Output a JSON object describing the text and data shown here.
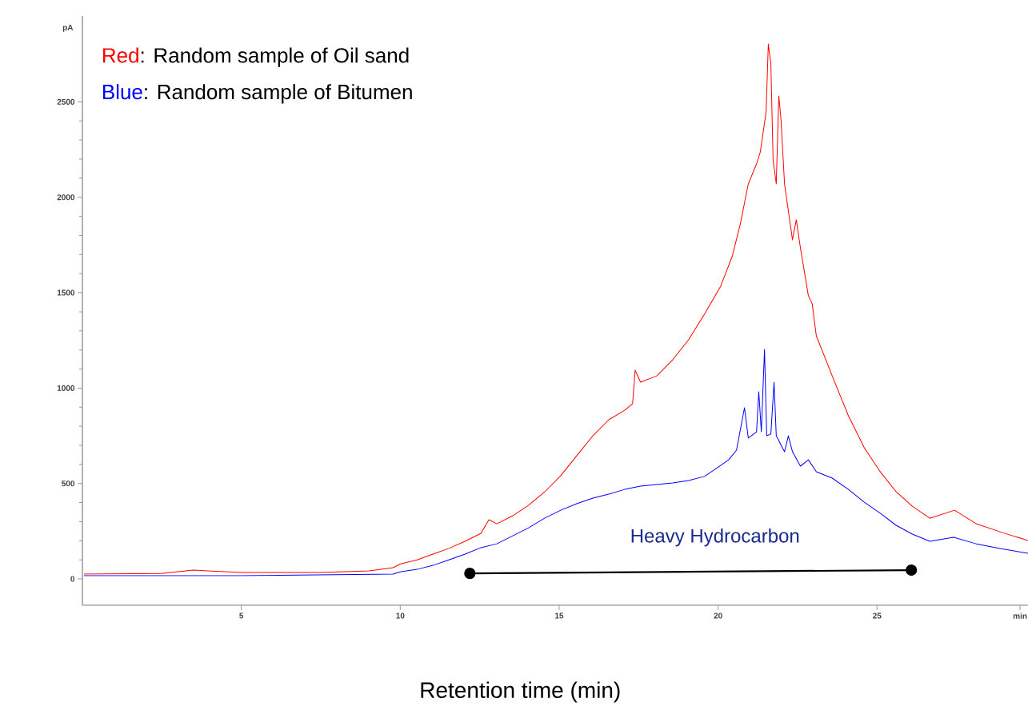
{
  "chart_data": {
    "type": "line",
    "xlabel": "Retention time (min)",
    "ylabel": "pA",
    "xlim": [
      0,
      29.75
    ],
    "ylim": [
      -138,
      2950
    ],
    "xticks": [
      5,
      10,
      15,
      20,
      25,
      {
        "value": 29.5,
        "label": "min"
      }
    ],
    "yticks": [
      0,
      500,
      1000,
      1500,
      2000,
      2500
    ],
    "grid": false,
    "legend": "top left",
    "marker": "none",
    "line_style": "solid",
    "annotations": [
      ": Random sample of Oil sand",
      ": Random sample of Bitumen",
      "Heavy Hydrocarbon"
    ],
    "series": [
      {
        "name": "Red",
        "color": "#ff0000",
        "x": [
          0.05,
          2.49,
          3.49,
          5.0,
          7.51,
          9.02,
          9.77,
          10.03,
          10.53,
          11.03,
          11.53,
          12.04,
          12.54,
          12.79,
          13.04,
          13.54,
          14.04,
          14.55,
          15.05,
          15.55,
          16.06,
          16.56,
          17.06,
          17.31,
          17.39,
          17.56,
          18.07,
          18.57,
          19.07,
          19.57,
          20.08,
          20.45,
          20.7,
          20.95,
          21.21,
          21.33,
          21.51,
          21.58,
          21.66,
          21.73,
          21.83,
          21.91,
          21.98,
          22.09,
          22.34,
          22.46,
          22.59,
          22.84,
          22.96,
          23.09,
          23.59,
          24.1,
          24.6,
          25.1,
          25.6,
          26.11,
          26.66,
          27.44,
          28.12,
          28.87,
          29.75
        ],
        "values": [
          25,
          29,
          46,
          34,
          34,
          42,
          59,
          80,
          100,
          130,
          160,
          197,
          239,
          310,
          289,
          331,
          386,
          457,
          541,
          645,
          750,
          834,
          884,
          918,
          1094,
          1031,
          1064,
          1148,
          1253,
          1387,
          1534,
          1693,
          1861,
          2070,
          2175,
          2238,
          2447,
          2803,
          2698,
          2196,
          2070,
          2531,
          2405,
          2070,
          1777,
          1882,
          1735,
          1484,
          1442,
          1274,
          1064,
          855,
          687,
          562,
          457,
          381,
          318,
          360,
          289,
          247,
          201
        ]
      },
      {
        "name": "Blue",
        "color": "#0000ff",
        "x": [
          0.05,
          2.49,
          5.0,
          9.77,
          10.03,
          10.53,
          11.03,
          11.53,
          12.04,
          12.54,
          13.04,
          13.54,
          14.04,
          14.55,
          15.05,
          15.55,
          16.06,
          16.56,
          17.06,
          17.56,
          18.07,
          18.57,
          19.07,
          19.57,
          20.08,
          20.33,
          20.58,
          20.83,
          20.95,
          21.21,
          21.28,
          21.36,
          21.46,
          21.53,
          21.66,
          21.76,
          21.83,
          22.09,
          22.21,
          22.34,
          22.59,
          22.84,
          23.09,
          23.59,
          24.1,
          24.6,
          25.1,
          25.6,
          26.11,
          26.66,
          27.41,
          28.12,
          28.87,
          29.75
        ],
        "values": [
          17,
          17,
          17,
          25,
          38,
          50,
          71,
          100,
          130,
          164,
          184,
          226,
          268,
          319,
          360,
          394,
          423,
          444,
          469,
          486,
          495,
          503,
          516,
          537,
          595,
          624,
          675,
          897,
          738,
          771,
          981,
          771,
          1203,
          750,
          759,
          1031,
          750,
          666,
          750,
          666,
          591,
          624,
          562,
          528,
          469,
          402,
          344,
          281,
          235,
          197,
          218,
          184,
          159,
          134
        ]
      },
      {
        "type": "line",
        "color": "#000000",
        "marker": "circle",
        "x": [
          12.19,
          26.08
        ],
        "values": [
          29,
          46
        ]
      }
    ]
  }
}
